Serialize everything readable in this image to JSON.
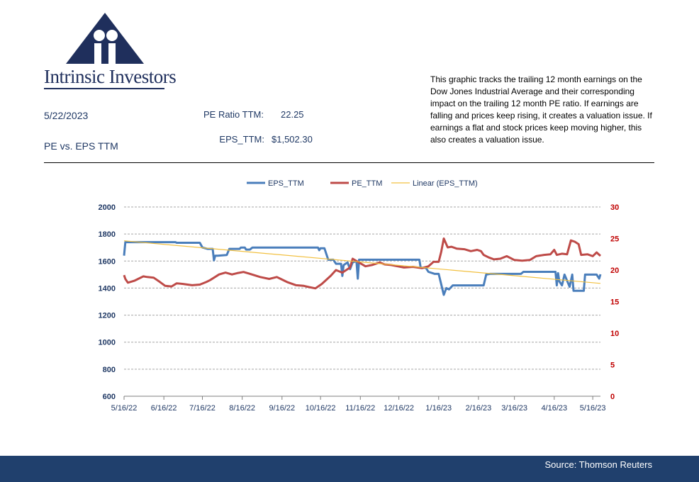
{
  "brand": {
    "name": "Intrinsic Investors"
  },
  "header": {
    "date": "5/22/2023",
    "title": "PE vs. EPS TTM",
    "pe_label": "PE Ratio TTM:",
    "pe_value": "22.25",
    "eps_label": "EPS_TTM:",
    "eps_value": "$1,502.30"
  },
  "description": "This graphic tracks the trailing 12 month earnings on the Dow Jones Industrial Average and their corresponding impact on the trailing 12 month PE ratio.  If earnings are falling and prices keep rising, it creates a valuation issue.  If earnings a flat and stock prices keep moving higher, this also creates a valuation issue.",
  "footer": {
    "source": "Source: Thomson Reuters"
  },
  "colors": {
    "eps": "#4a7ebb",
    "pe": "#be4b48",
    "trend": "#f2c040",
    "axis_left": "#1f3864",
    "axis_right": "#c00000",
    "footer": "#20406d"
  },
  "chart_data": {
    "type": "line",
    "x_range": [
      "2022-05-16",
      "2023-05-22"
    ],
    "x_ticks": [
      "5/16/22",
      "6/16/22",
      "7/16/22",
      "8/16/22",
      "9/16/22",
      "10/16/22",
      "11/16/22",
      "12/16/22",
      "1/16/23",
      "2/16/23",
      "3/16/23",
      "4/16/23",
      "5/16/23"
    ],
    "y_left": {
      "min": 600,
      "max": 2000,
      "step": 200,
      "ticks": [
        "2000",
        "1800",
        "1600",
        "1400",
        "1200",
        "1000",
        "800",
        "600"
      ]
    },
    "y_right": {
      "min": 0,
      "max": 30,
      "step": 5,
      "ticks": [
        "30",
        "25",
        "20",
        "15",
        "10",
        "5",
        "0"
      ]
    },
    "grid": true,
    "legend_position": "top",
    "series": [
      {
        "name": "EPS_TTM",
        "axis": "left",
        "points": [
          [
            "2022-05-16",
            1640
          ],
          [
            "2022-05-17",
            1740
          ],
          [
            "2022-06-25",
            1740
          ],
          [
            "2022-06-26",
            1735
          ],
          [
            "2022-07-14",
            1735
          ],
          [
            "2022-07-16",
            1700
          ],
          [
            "2022-07-20",
            1690
          ],
          [
            "2022-07-24",
            1690
          ],
          [
            "2022-07-25",
            1605
          ],
          [
            "2022-07-26",
            1640
          ],
          [
            "2022-07-28",
            1640
          ],
          [
            "2022-08-04",
            1645
          ],
          [
            "2022-08-06",
            1690
          ],
          [
            "2022-08-14",
            1690
          ],
          [
            "2022-08-15",
            1700
          ],
          [
            "2022-08-18",
            1700
          ],
          [
            "2022-08-19",
            1685
          ],
          [
            "2022-08-22",
            1685
          ],
          [
            "2022-08-24",
            1700
          ],
          [
            "2022-10-14",
            1700
          ],
          [
            "2022-10-15",
            1680
          ],
          [
            "2022-10-16",
            1695
          ],
          [
            "2022-10-19",
            1695
          ],
          [
            "2022-10-22",
            1610
          ],
          [
            "2022-10-26",
            1610
          ],
          [
            "2022-10-28",
            1580
          ],
          [
            "2022-11-01",
            1580
          ],
          [
            "2022-11-02",
            1490
          ],
          [
            "2022-11-03",
            1570
          ],
          [
            "2022-11-06",
            1590
          ],
          [
            "2022-11-08",
            1540
          ],
          [
            "2022-11-10",
            1590
          ],
          [
            "2022-11-13",
            1600
          ],
          [
            "2022-11-14",
            1470
          ],
          [
            "2022-11-15",
            1610
          ],
          [
            "2023-01-01",
            1610
          ],
          [
            "2023-01-02",
            1550
          ],
          [
            "2023-01-06",
            1550
          ],
          [
            "2023-01-08",
            1520
          ],
          [
            "2023-01-13",
            1505
          ],
          [
            "2023-01-16",
            1505
          ],
          [
            "2023-01-20",
            1350
          ],
          [
            "2023-01-22",
            1400
          ],
          [
            "2023-01-24",
            1390
          ],
          [
            "2023-01-27",
            1420
          ],
          [
            "2023-02-20",
            1420
          ],
          [
            "2023-02-22",
            1500
          ],
          [
            "2023-02-25",
            1505
          ],
          [
            "2023-03-21",
            1505
          ],
          [
            "2023-03-23",
            1520
          ],
          [
            "2023-04-17",
            1520
          ],
          [
            "2023-04-18",
            1420
          ],
          [
            "2023-04-19",
            1510
          ],
          [
            "2023-04-20",
            1450
          ],
          [
            "2023-04-22",
            1420
          ],
          [
            "2023-04-24",
            1500
          ],
          [
            "2023-04-28",
            1410
          ],
          [
            "2023-04-30",
            1500
          ],
          [
            "2023-05-01",
            1380
          ],
          [
            "2023-05-09",
            1380
          ],
          [
            "2023-05-10",
            1500
          ],
          [
            "2023-05-19",
            1500
          ],
          [
            "2023-05-21",
            1470
          ],
          [
            "2023-05-22",
            1502
          ]
        ]
      },
      {
        "name": "PE_TTM",
        "axis": "right",
        "points": [
          [
            "2022-05-16",
            19.2
          ],
          [
            "2022-05-17",
            18.6
          ],
          [
            "2022-05-19",
            18.0
          ],
          [
            "2022-05-24",
            18.3
          ],
          [
            "2022-05-31",
            19.0
          ],
          [
            "2022-06-03",
            18.9
          ],
          [
            "2022-06-08",
            18.8
          ],
          [
            "2022-06-13",
            18.1
          ],
          [
            "2022-06-17",
            17.5
          ],
          [
            "2022-06-22",
            17.4
          ],
          [
            "2022-06-26",
            17.9
          ],
          [
            "2022-07-01",
            17.8
          ],
          [
            "2022-07-08",
            17.6
          ],
          [
            "2022-07-14",
            17.7
          ],
          [
            "2022-07-19",
            18.1
          ],
          [
            "2022-07-22",
            18.4
          ],
          [
            "2022-07-29",
            19.3
          ],
          [
            "2022-08-03",
            19.6
          ],
          [
            "2022-08-08",
            19.3
          ],
          [
            "2022-08-12",
            19.5
          ],
          [
            "2022-08-17",
            19.7
          ],
          [
            "2022-08-22",
            19.4
          ],
          [
            "2022-08-30",
            18.9
          ],
          [
            "2022-09-06",
            18.6
          ],
          [
            "2022-09-12",
            18.9
          ],
          [
            "2022-09-14",
            18.7
          ],
          [
            "2022-09-20",
            18.1
          ],
          [
            "2022-09-27",
            17.6
          ],
          [
            "2022-10-03",
            17.5
          ],
          [
            "2022-10-07",
            17.3
          ],
          [
            "2022-10-12",
            17.1
          ],
          [
            "2022-10-17",
            17.8
          ],
          [
            "2022-10-24",
            19.1
          ],
          [
            "2022-10-28",
            20.0
          ],
          [
            "2022-11-02",
            19.6
          ],
          [
            "2022-11-08",
            20.4
          ],
          [
            "2022-11-10",
            21.8
          ],
          [
            "2022-11-15",
            21.2
          ],
          [
            "2022-11-20",
            20.6
          ],
          [
            "2022-11-25",
            20.8
          ],
          [
            "2022-12-01",
            21.2
          ],
          [
            "2022-12-05",
            20.9
          ],
          [
            "2022-12-10",
            20.8
          ],
          [
            "2022-12-15",
            20.6
          ],
          [
            "2022-12-20",
            20.4
          ],
          [
            "2022-12-27",
            20.5
          ],
          [
            "2023-01-03",
            20.3
          ],
          [
            "2023-01-08",
            20.6
          ],
          [
            "2023-01-12",
            21.3
          ],
          [
            "2023-01-16",
            21.3
          ],
          [
            "2023-01-18",
            22.9
          ],
          [
            "2023-01-20",
            25.0
          ],
          [
            "2023-01-23",
            23.6
          ],
          [
            "2023-01-26",
            23.7
          ],
          [
            "2023-01-30",
            23.4
          ],
          [
            "2023-02-05",
            23.3
          ],
          [
            "2023-02-10",
            23.0
          ],
          [
            "2023-02-15",
            23.2
          ],
          [
            "2023-02-18",
            23.0
          ],
          [
            "2023-02-20",
            22.4
          ],
          [
            "2023-02-24",
            22.0
          ],
          [
            "2023-02-28",
            21.7
          ],
          [
            "2023-03-05",
            21.8
          ],
          [
            "2023-03-10",
            22.2
          ],
          [
            "2023-03-16",
            21.6
          ],
          [
            "2023-03-22",
            21.5
          ],
          [
            "2023-03-28",
            21.6
          ],
          [
            "2023-04-02",
            22.2
          ],
          [
            "2023-04-08",
            22.4
          ],
          [
            "2023-04-13",
            22.5
          ],
          [
            "2023-04-16",
            23.2
          ],
          [
            "2023-04-18",
            22.4
          ],
          [
            "2023-04-22",
            22.6
          ],
          [
            "2023-04-26",
            22.5
          ],
          [
            "2023-04-29",
            24.7
          ],
          [
            "2023-05-02",
            24.5
          ],
          [
            "2023-05-05",
            24.1
          ],
          [
            "2023-05-07",
            22.4
          ],
          [
            "2023-05-12",
            22.5
          ],
          [
            "2023-05-16",
            22.2
          ],
          [
            "2023-05-19",
            22.8
          ],
          [
            "2023-05-22",
            22.25
          ]
        ]
      },
      {
        "name": "Linear (EPS_TTM)",
        "axis": "left",
        "trend": true,
        "points": [
          [
            "2022-05-16",
            1750
          ],
          [
            "2023-05-22",
            1435
          ]
        ]
      }
    ]
  }
}
